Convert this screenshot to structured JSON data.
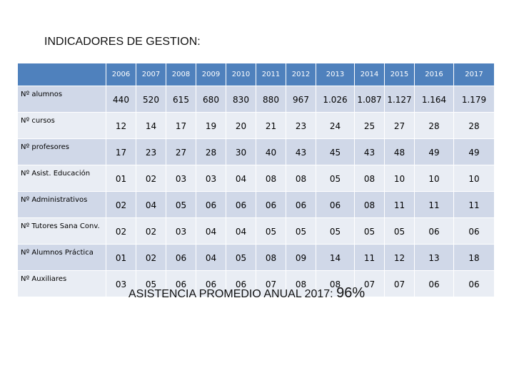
{
  "title": "INDICADORES DE GESTION:",
  "table": {
    "years": [
      "2006",
      "2007",
      "2008",
      "2009",
      "2010",
      "2011",
      "2012",
      "2013",
      "2014",
      "2015",
      "2016",
      "2017"
    ],
    "rows": [
      {
        "label": "Nº alumnos",
        "values": [
          "440",
          "520",
          "615",
          "680",
          "830",
          "880",
          "967",
          "1.026",
          "1.087",
          "1.127",
          "1.164",
          "1.179"
        ]
      },
      {
        "label": "Nº cursos",
        "values": [
          "12",
          "14",
          "17",
          "19",
          "20",
          "21",
          "23",
          "24",
          "25",
          "27",
          "28",
          "28"
        ]
      },
      {
        "label": "Nº profesores",
        "values": [
          "17",
          "23",
          "27",
          "28",
          "30",
          "40",
          "43",
          "45",
          "43",
          "48",
          "49",
          "49"
        ]
      },
      {
        "label": "Nº Asist.  Educación",
        "values": [
          "01",
          "02",
          "03",
          "03",
          "04",
          "08",
          "08",
          "05",
          "08",
          "10",
          "10",
          "10"
        ]
      },
      {
        "label": "Nº Administrativos",
        "values": [
          "02",
          "04",
          "05",
          "06",
          "06",
          "06",
          "06",
          "06",
          "08",
          "11",
          "11",
          "11"
        ]
      },
      {
        "label": "Nº Tutores Sana Conv.",
        "values": [
          "02",
          "02",
          "03",
          "04",
          "04",
          "05",
          "05",
          "05",
          "05",
          "05",
          "06",
          "06"
        ]
      },
      {
        "label": "Nº Alumnos Práctica",
        "values": [
          "01",
          "02",
          "06",
          "04",
          "05",
          "08",
          "09",
          "14",
          "11",
          "12",
          "13",
          "18"
        ]
      },
      {
        "label": "Nº Auxiliares",
        "values": [
          "03",
          "05",
          "06",
          "06",
          "06",
          "07",
          "08",
          "08",
          "07",
          "07",
          "06",
          "06"
        ]
      }
    ]
  },
  "summary": {
    "label": "ASISTENCIA PROMEDIO ANUAL 2017:",
    "value": "96%"
  },
  "colors": {
    "header": "#4f81bd",
    "row_odd": "#d0d8e8",
    "row_even": "#e9edf4"
  }
}
